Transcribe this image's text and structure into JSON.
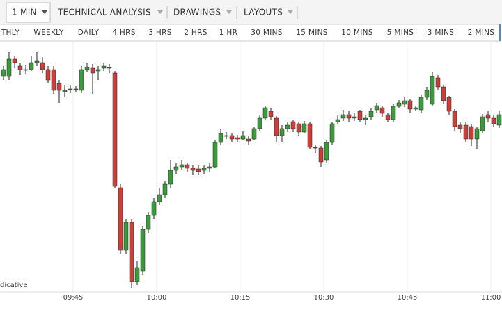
{
  "toolbar": {
    "items": [
      "1 MIN",
      "TECHNICAL ANALYSIS",
      "DRAWINGS",
      "LAYOUTS"
    ]
  },
  "timeframes": [
    "THLY",
    "WEEKLY",
    "DAILY",
    "4 HRS",
    "3 HRS",
    "2 HRS",
    "1 HR",
    "30 MINS",
    "15 MINS",
    "10 MINS",
    "5 MINS",
    "3 MINS",
    "2 MINS"
  ],
  "chart_data": {
    "type": "candlestick",
    "note": "dicative",
    "up_color": "#3c9a3c",
    "down_color": "#c8403c",
    "xlim": [
      -0.625,
      89.5
    ],
    "ylim": [
      0,
      360
    ],
    "xticks": [
      {
        "value": 12.5,
        "label": "09:45"
      },
      {
        "value": 27.5,
        "label": "10:00"
      },
      {
        "value": 42.5,
        "label": "10:15"
      },
      {
        "value": 57.5,
        "label": "10:30"
      },
      {
        "value": 72.5,
        "label": "10:45"
      },
      {
        "value": 87.5,
        "label": "11:00"
      }
    ],
    "grid": true,
    "ohlc": [
      [
        310,
        325,
        305,
        320
      ],
      [
        310,
        345,
        305,
        335
      ],
      [
        335,
        340,
        322,
        330
      ],
      [
        325,
        330,
        312,
        320
      ],
      [
        320,
        326,
        314,
        320
      ],
      [
        320,
        340,
        318,
        330
      ],
      [
        330,
        345,
        325,
        332
      ],
      [
        330,
        338,
        315,
        320
      ],
      [
        320,
        325,
        300,
        305
      ],
      [
        320,
        325,
        285,
        290
      ],
      [
        300,
        305,
        272,
        290
      ],
      [
        288,
        298,
        280,
        290
      ],
      [
        292,
        298,
        286,
        292
      ],
      [
        292,
        296,
        288,
        292
      ],
      [
        290,
        325,
        286,
        320
      ],
      [
        320,
        330,
        316,
        323
      ],
      [
        322,
        328,
        285,
        315
      ],
      [
        318,
        325,
        305,
        320
      ],
      [
        322,
        330,
        318,
        325
      ],
      [
        323,
        328,
        315,
        323
      ],
      [
        315,
        318,
        150,
        152
      ],
      [
        150,
        155,
        55,
        60
      ],
      [
        60,
        105,
        55,
        100
      ],
      [
        100,
        105,
        5,
        15
      ],
      [
        15,
        45,
        10,
        35
      ],
      [
        30,
        95,
        25,
        90
      ],
      [
        90,
        115,
        85,
        110
      ],
      [
        110,
        135,
        105,
        130
      ],
      [
        130,
        150,
        125,
        140
      ],
      [
        140,
        160,
        135,
        155
      ],
      [
        155,
        190,
        150,
        175
      ],
      [
        175,
        185,
        170,
        180
      ],
      [
        180,
        190,
        175,
        183
      ],
      [
        183,
        186,
        172,
        178
      ],
      [
        178,
        182,
        168,
        175
      ],
      [
        177,
        182,
        168,
        173
      ],
      [
        175,
        183,
        170,
        178
      ],
      [
        178,
        185,
        172,
        180
      ],
      [
        180,
        218,
        178,
        215
      ],
      [
        215,
        235,
        212,
        228
      ],
      [
        225,
        230,
        220,
        225
      ],
      [
        225,
        228,
        215,
        220
      ],
      [
        222,
        226,
        215,
        220
      ],
      [
        220,
        232,
        218,
        225
      ],
      [
        220,
        225,
        212,
        217
      ],
      [
        220,
        238,
        218,
        235
      ],
      [
        235,
        255,
        232,
        250
      ],
      [
        250,
        268,
        248,
        265
      ],
      [
        260,
        264,
        248,
        252
      ],
      [
        250,
        253,
        215,
        225
      ],
      [
        225,
        240,
        215,
        235
      ],
      [
        235,
        245,
        230,
        240
      ],
      [
        245,
        248,
        230,
        235
      ],
      [
        242,
        245,
        225,
        230
      ],
      [
        230,
        246,
        228,
        242
      ],
      [
        242,
        245,
        205,
        208
      ],
      [
        208,
        212,
        200,
        207
      ],
      [
        207,
        210,
        180,
        187
      ],
      [
        190,
        218,
        185,
        215
      ],
      [
        215,
        245,
        212,
        242
      ],
      [
        245,
        255,
        242,
        248
      ],
      [
        250,
        262,
        246,
        255
      ],
      [
        255,
        260,
        245,
        250
      ],
      [
        250,
        258,
        246,
        252
      ],
      [
        260,
        262,
        244,
        248
      ],
      [
        248,
        254,
        240,
        250
      ],
      [
        252,
        265,
        248,
        260
      ],
      [
        262,
        272,
        258,
        268
      ],
      [
        265,
        268,
        252,
        257
      ],
      [
        255,
        258,
        244,
        248
      ],
      [
        248,
        270,
        245,
        267
      ],
      [
        267,
        276,
        264,
        272
      ],
      [
        270,
        280,
        266,
        275
      ],
      [
        275,
        278,
        258,
        263
      ],
      [
        263,
        268,
        260,
        265
      ],
      [
        262,
        284,
        258,
        280
      ],
      [
        280,
        295,
        276,
        290
      ],
      [
        270,
        316,
        268,
        310
      ],
      [
        308,
        312,
        290,
        295
      ],
      [
        295,
        298,
        270,
        275
      ],
      [
        280,
        282,
        255,
        260
      ],
      [
        260,
        263,
        232,
        238
      ],
      [
        240,
        244,
        228,
        235
      ],
      [
        240,
        245,
        215,
        220
      ],
      [
        238,
        242,
        210,
        220
      ],
      [
        220,
        238,
        205,
        235
      ],
      [
        232,
        256,
        228,
        252
      ],
      [
        255,
        260,
        245,
        250
      ],
      [
        250,
        255,
        238,
        242
      ],
      [
        240,
        260,
        236,
        255
      ]
    ]
  }
}
